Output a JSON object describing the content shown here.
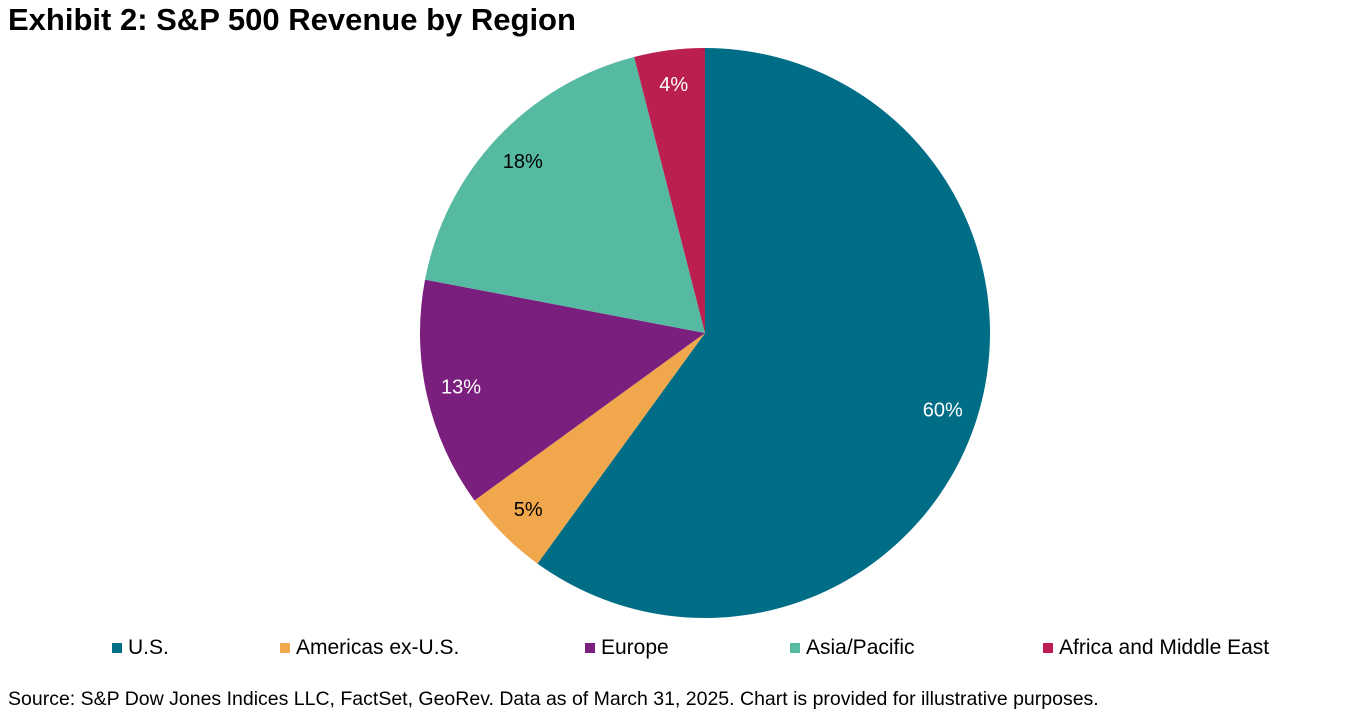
{
  "chart_data": {
    "type": "pie",
    "title": "Exhibit 2: S&P 500 Revenue by Region",
    "start": "12 o'clock, clockwise",
    "slices": [
      {
        "name": "U.S.",
        "value": 60,
        "label": "60%",
        "color": "#006d87",
        "label_color": "#ffffff"
      },
      {
        "name": "Americas ex-U.S.",
        "value": 5,
        "label": "5%",
        "color": "#f1a84d",
        "label_color": "#000000"
      },
      {
        "name": "Europe",
        "value": 13,
        "label": "13%",
        "color": "#7a1f7e",
        "label_color": "#ffffff"
      },
      {
        "name": "Asia/Pacific",
        "value": 18,
        "label": "18%",
        "color": "#55baa1",
        "label_color": "#000000"
      },
      {
        "name": "Africa and Middle East",
        "value": 4,
        "label": "4%",
        "color": "#bb1f50",
        "label_color": "#ffffff"
      }
    ],
    "legend_placement": "bottom"
  },
  "source": "Source: S&P Dow Jones Indices LLC, FactSet, GeoRev. Data as of March 31, 2025. Chart is provided for illustrative purposes."
}
